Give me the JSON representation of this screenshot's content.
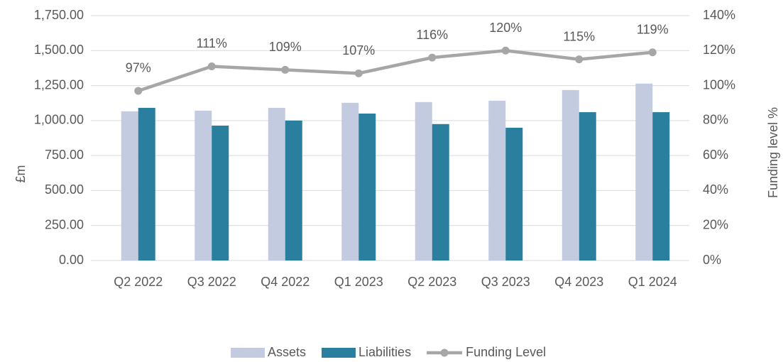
{
  "chart_data": {
    "type": "bar",
    "categories": [
      "Q2 2022",
      "Q3 2022",
      "Q4 2022",
      "Q1 2023",
      "Q2 2023",
      "Q3 2023",
      "Q4 2023",
      "Q1 2024"
    ],
    "series": [
      {
        "name": "Assets",
        "color": "#c2cbe0",
        "values": [
          1066,
          1071,
          1091,
          1127,
          1132,
          1142,
          1218,
          1264
        ]
      },
      {
        "name": "Liabilities",
        "color": "#2a7f9e",
        "values": [
          1091,
          964,
          1000,
          1050,
          975,
          949,
          1060,
          1060
        ]
      },
      {
        "name": "Funding Level",
        "type": "line",
        "axis": "y2",
        "color": "#a6a6a6",
        "values": [
          97,
          111,
          109,
          107,
          116,
          120,
          115,
          119
        ],
        "value_labels": [
          "97%",
          "111%",
          "109%",
          "107%",
          "116%",
          "120%",
          "115%",
          "119%"
        ]
      }
    ],
    "ylabel": "£m",
    "y2label": "Funding level %",
    "ylim": [
      0,
      1750
    ],
    "yticks": [
      {
        "value": 0,
        "label": "0.00"
      },
      {
        "value": 250,
        "label": "250.00"
      },
      {
        "value": 500,
        "label": "500.00"
      },
      {
        "value": 750,
        "label": "750.00"
      },
      {
        "value": 1000,
        "label": "1,000.00"
      },
      {
        "value": 1250,
        "label": "1,250.00"
      },
      {
        "value": 1500,
        "label": "1,500.00"
      },
      {
        "value": 1750,
        "label": "1,750.00"
      }
    ],
    "y2lim": [
      0,
      140
    ],
    "y2ticks": [
      {
        "value": 0,
        "label": "0%"
      },
      {
        "value": 20,
        "label": "20%"
      },
      {
        "value": 40,
        "label": "40%"
      },
      {
        "value": 60,
        "label": "60%"
      },
      {
        "value": 80,
        "label": "80%"
      },
      {
        "value": 100,
        "label": "100%"
      },
      {
        "value": 120,
        "label": "120%"
      },
      {
        "value": 140,
        "label": "140%"
      }
    ],
    "grid": true,
    "legend": "bottom"
  }
}
